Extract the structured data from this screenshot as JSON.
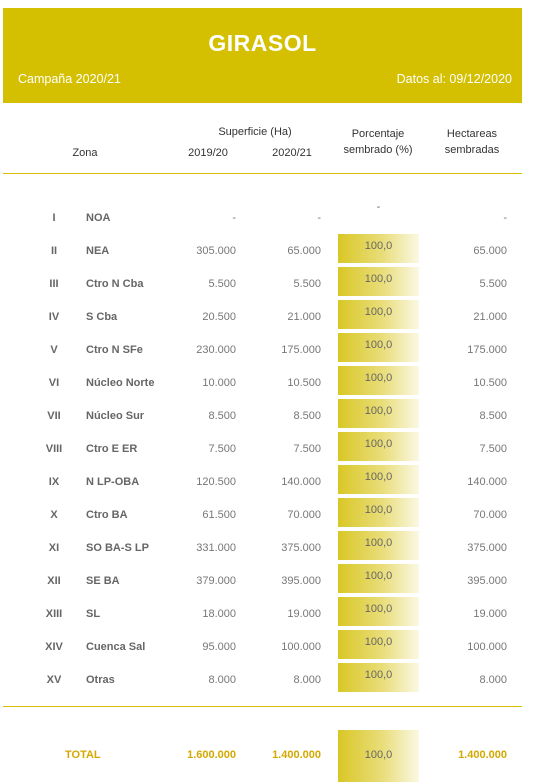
{
  "header": {
    "title": "GIRASOL",
    "campaign": "Campaña 2020/21",
    "date": "Datos al: 09/12/2020"
  },
  "columns": {
    "zona": "Zona",
    "superficie": "Superficie (Ha)",
    "year1": "2019/20",
    "year2": "2020/21",
    "pct_line1": "Porcentaje",
    "pct_line2": "sembrado (%)",
    "ha_line1": "Hectareas",
    "ha_line2": "sembradas"
  },
  "rows": [
    {
      "num": "I",
      "zona": "NOA",
      "s1": "-",
      "s2": "-",
      "pct": "-",
      "ha": "-",
      "pct_value": 0
    },
    {
      "num": "II",
      "zona": "NEA",
      "s1": "305.000",
      "s2": "65.000",
      "pct": "100,0",
      "ha": "65.000",
      "pct_value": 100
    },
    {
      "num": "III",
      "zona": "Ctro N Cba",
      "s1": "5.500",
      "s2": "5.500",
      "pct": "100,0",
      "ha": "5.500",
      "pct_value": 100
    },
    {
      "num": "IV",
      "zona": "S Cba",
      "s1": "20.500",
      "s2": "21.000",
      "pct": "100,0",
      "ha": "21.000",
      "pct_value": 100
    },
    {
      "num": "V",
      "zona": "Ctro N SFe",
      "s1": "230.000",
      "s2": "175.000",
      "pct": "100,0",
      "ha": "175.000",
      "pct_value": 100
    },
    {
      "num": "VI",
      "zona": "Núcleo Norte",
      "s1": "10.000",
      "s2": "10.500",
      "pct": "100,0",
      "ha": "10.500",
      "pct_value": 100
    },
    {
      "num": "VII",
      "zona": "Núcleo Sur",
      "s1": "8.500",
      "s2": "8.500",
      "pct": "100,0",
      "ha": "8.500",
      "pct_value": 100
    },
    {
      "num": "VIII",
      "zona": "Ctro E ER",
      "s1": "7.500",
      "s2": "7.500",
      "pct": "100,0",
      "ha": "7.500",
      "pct_value": 100
    },
    {
      "num": "IX",
      "zona": "N LP-OBA",
      "s1": "120.500",
      "s2": "140.000",
      "pct": "100,0",
      "ha": "140.000",
      "pct_value": 100
    },
    {
      "num": "X",
      "zona": "Ctro BA",
      "s1": "61.500",
      "s2": "70.000",
      "pct": "100,0",
      "ha": "70.000",
      "pct_value": 100
    },
    {
      "num": "XI",
      "zona": "SO BA-S LP",
      "s1": "331.000",
      "s2": "375.000",
      "pct": "100,0",
      "ha": "375.000",
      "pct_value": 100
    },
    {
      "num": "XII",
      "zona": "SE BA",
      "s1": "379.000",
      "s2": "395.000",
      "pct": "100,0",
      "ha": "395.000",
      "pct_value": 100
    },
    {
      "num": "XIII",
      "zona": "SL",
      "s1": "18.000",
      "s2": "19.000",
      "pct": "100,0",
      "ha": "19.000",
      "pct_value": 100
    },
    {
      "num": "XIV",
      "zona": "Cuenca Sal",
      "s1": "95.000",
      "s2": "100.000",
      "pct": "100,0",
      "ha": "100.000",
      "pct_value": 100
    },
    {
      "num": "XV",
      "zona": "Otras",
      "s1": "8.000",
      "s2": "8.000",
      "pct": "100,0",
      "ha": "8.000",
      "pct_value": 100
    }
  ],
  "total": {
    "label": "TOTAL",
    "s1": "1.600.000",
    "s2": "1.400.000",
    "pct": "100,0",
    "ha": "1.400.000",
    "pct_value": 100
  },
  "colors": {
    "accent": "#d4c000",
    "total_text": "#d4a800"
  }
}
